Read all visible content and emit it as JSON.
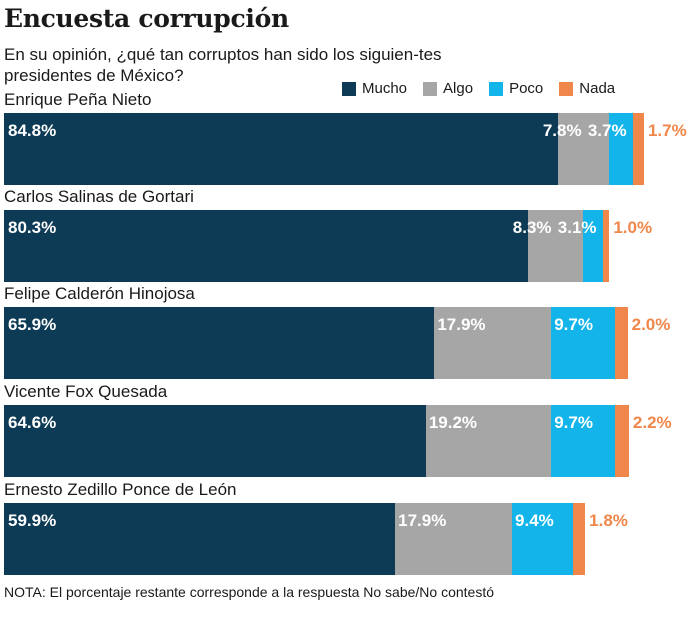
{
  "title": "Encuesta corrupción",
  "subtitle": "En su opinión, ¿qué tan corruptos han sido los siguien-tes presidentes de México?",
  "note": "NOTA: El porcentaje restante corresponde a la respuesta No sabe/No contestó",
  "chart_data": {
    "type": "bar",
    "orientation": "horizontal-stacked",
    "title": "Encuesta corrupción",
    "categories": [
      "Enrique Peña Nieto",
      "Carlos Salinas de Gortari",
      "Felipe Calderón Hinojosa",
      "Vicente Fox Quesada",
      "Ernesto Zedillo Ponce de León"
    ],
    "series": [
      {
        "name": "Mucho",
        "color": "#0d3a55",
        "values": [
          84.8,
          80.3,
          65.9,
          64.6,
          59.9
        ]
      },
      {
        "name": "Algo",
        "color": "#a6a6a6",
        "values": [
          7.8,
          8.3,
          17.9,
          19.2,
          17.9
        ]
      },
      {
        "name": "Poco",
        "color": "#13b4ea",
        "values": [
          3.7,
          3.1,
          9.7,
          9.7,
          9.4
        ]
      },
      {
        "name": "Nada",
        "color": "#f0874a",
        "values": [
          1.7,
          1.0,
          2.0,
          2.2,
          1.8
        ]
      }
    ],
    "labels": [
      [
        "84.8%",
        "7.8%",
        "3.7%",
        "1.7%"
      ],
      [
        "80.3%",
        "8.3%",
        "3.1%",
        "1.0%"
      ],
      [
        "65.9%",
        "17.9%",
        "9.7%",
        "2.0%"
      ],
      [
        "64.6%",
        "19.2%",
        "9.7%",
        "2.2%"
      ],
      [
        "59.9%",
        "17.9%",
        "9.4%",
        "1.8%"
      ]
    ],
    "xlim": [
      0,
      100
    ],
    "legend": "top-right",
    "grid": false
  }
}
